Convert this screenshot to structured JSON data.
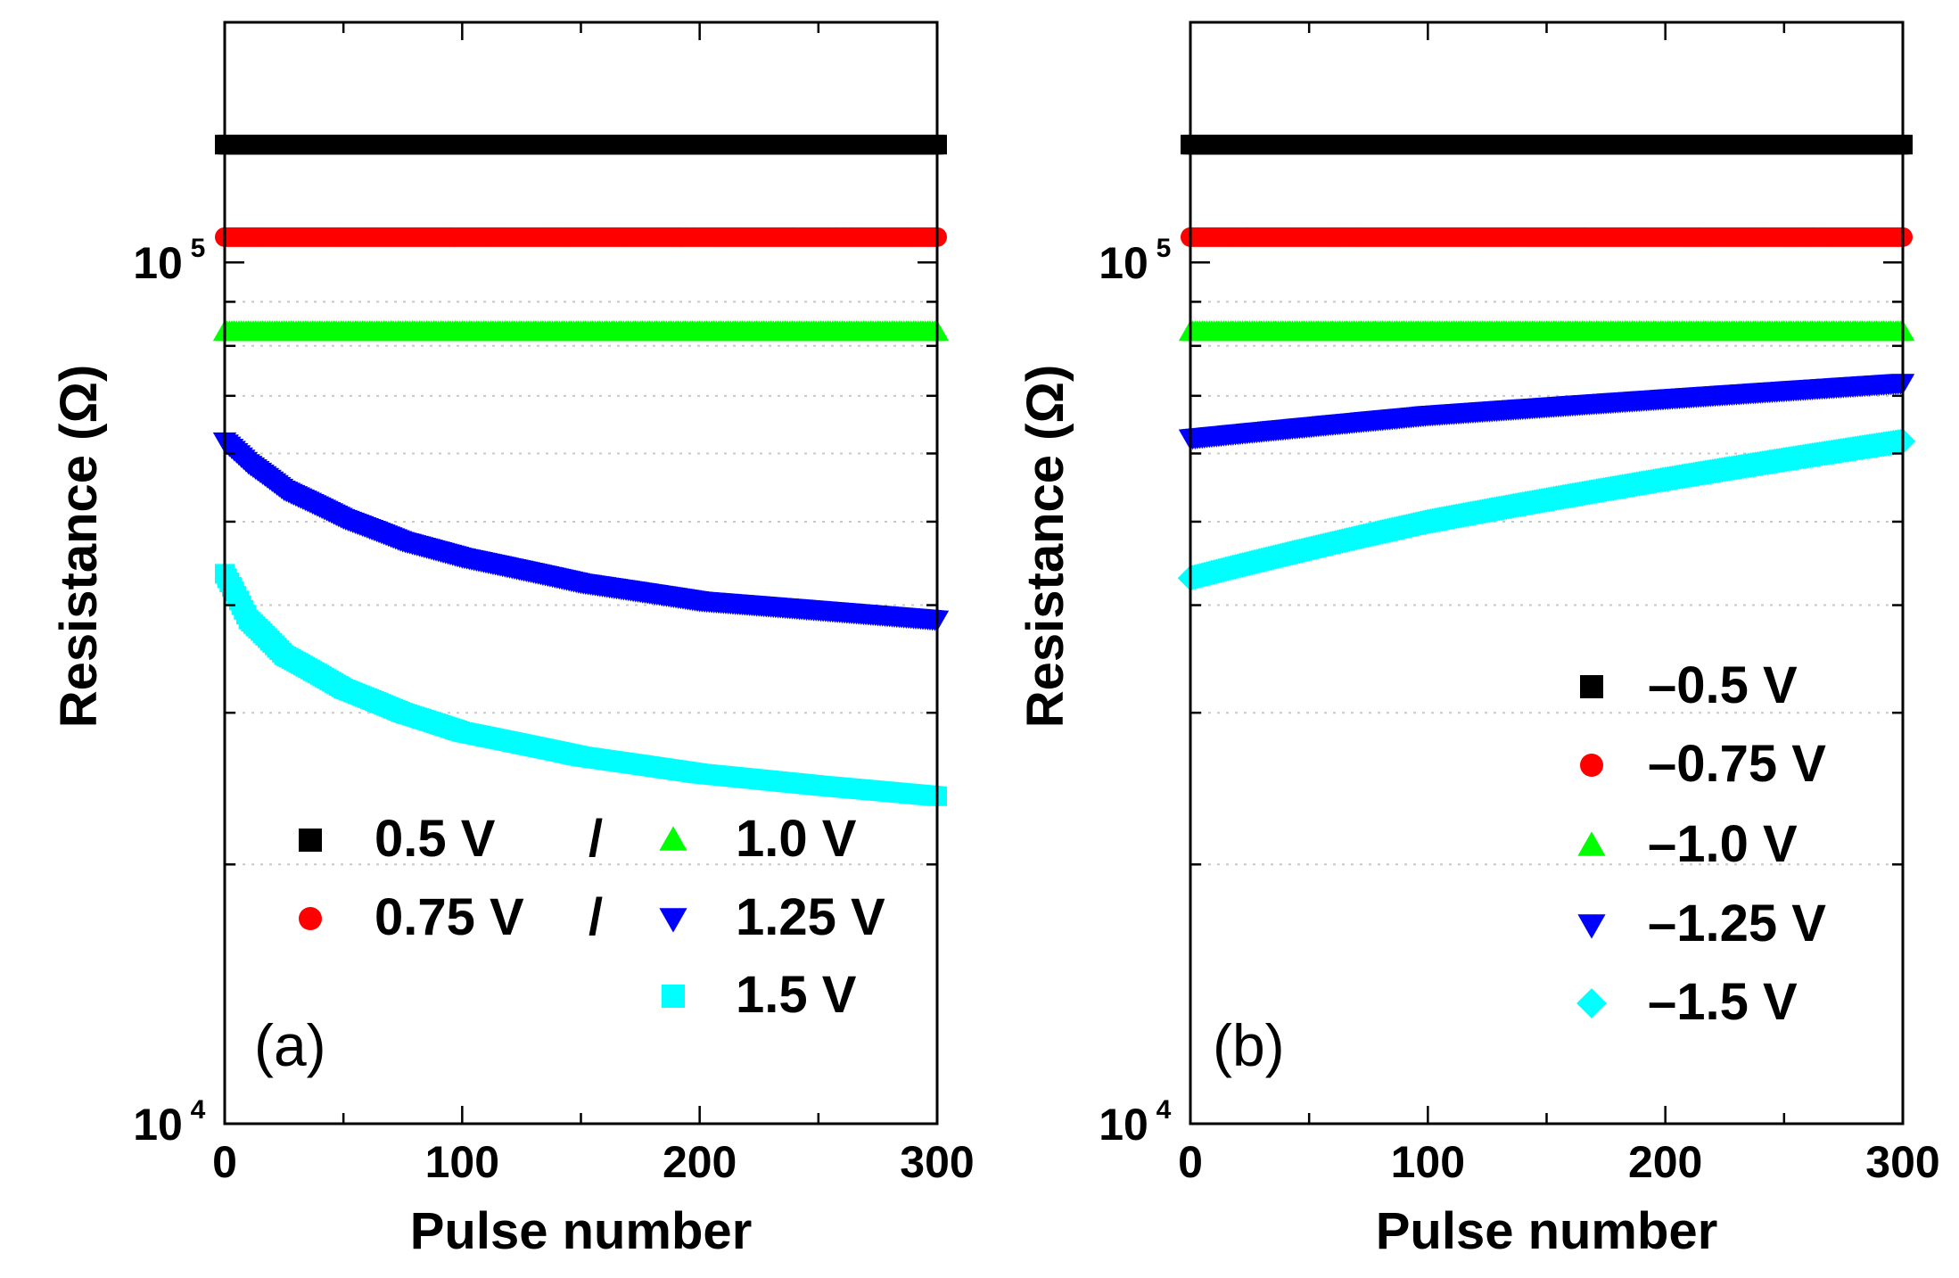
{
  "chart_data": [
    {
      "type": "scatter",
      "panel_label": "(a)",
      "xlabel": "Pulse number",
      "ylabel": "Resistance (Ω)",
      "xlim": [
        0,
        300
      ],
      "ylim": [
        10000,
        190000
      ],
      "yscale": "log",
      "x_ticks": [
        0,
        100,
        200,
        300
      ],
      "x_tick_labels": [
        "0",
        "100",
        "200",
        "300"
      ],
      "y_ticks": [
        {
          "value": 10000,
          "base": "10",
          "exp": "4"
        },
        {
          "value": 100000,
          "base": "10",
          "exp": "5"
        }
      ],
      "grid": "dotted horizontal at minor decades",
      "legend_position": "lower-right",
      "legend_separator": "/",
      "series": [
        {
          "name": "0.5 V",
          "color": "#000000",
          "marker": "square",
          "x": [
            0,
            50,
            100,
            150,
            200,
            250,
            300
          ],
          "values": [
            137000,
            137000,
            137000,
            137000,
            137000,
            137000,
            137000
          ]
        },
        {
          "name": "0.75 V",
          "color": "#ff0000",
          "marker": "circle",
          "x": [
            0,
            50,
            100,
            150,
            200,
            250,
            300
          ],
          "values": [
            107000,
            107000,
            107000,
            107000,
            107000,
            107000,
            107000
          ]
        },
        {
          "name": "1.0 V",
          "color": "#00ff00",
          "marker": "triangle-up",
          "x": [
            0,
            50,
            100,
            150,
            200,
            250,
            300
          ],
          "values": [
            83000,
            83000,
            83000,
            83000,
            83000,
            83000,
            83000
          ]
        },
        {
          "name": "1.25 V",
          "color": "#0000ff",
          "marker": "triangle-down",
          "x": [
            0,
            10,
            25,
            50,
            75,
            100,
            150,
            200,
            250,
            300
          ],
          "values": [
            62000,
            58500,
            54500,
            50500,
            47500,
            45500,
            42500,
            40500,
            39500,
            38500
          ]
        },
        {
          "name": "1.5 V",
          "color": "#00ffff",
          "marker": "square",
          "x": [
            0,
            10,
            25,
            50,
            75,
            100,
            150,
            200,
            250,
            300
          ],
          "values": [
            43500,
            38500,
            35000,
            32000,
            30000,
            28500,
            26700,
            25500,
            24700,
            24000
          ]
        }
      ]
    },
    {
      "type": "scatter",
      "panel_label": "(b)",
      "xlabel": "Pulse number",
      "ylabel": "Resistance (Ω)",
      "xlim": [
        0,
        300
      ],
      "ylim": [
        10000,
        190000
      ],
      "yscale": "log",
      "x_ticks": [
        0,
        100,
        200,
        300
      ],
      "x_tick_labels": [
        "0",
        "100",
        "200",
        "300"
      ],
      "y_ticks": [
        {
          "value": 10000,
          "base": "10",
          "exp": "4"
        },
        {
          "value": 100000,
          "base": "10",
          "exp": "5"
        }
      ],
      "grid": "dotted horizontal at minor decades",
      "legend_position": "lower-right",
      "series": [
        {
          "name": "–0.5 V",
          "color": "#000000",
          "marker": "square",
          "x": [
            0,
            50,
            100,
            150,
            200,
            250,
            300
          ],
          "values": [
            137000,
            137000,
            137000,
            137000,
            137000,
            137000,
            137000
          ]
        },
        {
          "name": "–0.75 V",
          "color": "#ff0000",
          "marker": "circle",
          "x": [
            0,
            50,
            100,
            150,
            200,
            250,
            300
          ],
          "values": [
            107000,
            107000,
            107000,
            107000,
            107000,
            107000,
            107000
          ]
        },
        {
          "name": "–1.0 V",
          "color": "#00ff00",
          "marker": "triangle-up",
          "x": [
            0,
            50,
            100,
            150,
            200,
            250,
            300
          ],
          "values": [
            83000,
            83000,
            83000,
            83000,
            83000,
            83000,
            83000
          ]
        },
        {
          "name": "–1.25 V",
          "color": "#0000ff",
          "marker": "triangle-down",
          "x": [
            0,
            50,
            100,
            150,
            200,
            250,
            300
          ],
          "values": [
            62500,
            64500,
            66500,
            68000,
            69500,
            71000,
            72500
          ]
        },
        {
          "name": "–1.5 V",
          "color": "#00ffff",
          "marker": "diamond",
          "x": [
            0,
            50,
            100,
            150,
            200,
            250,
            300
          ],
          "values": [
            43000,
            46500,
            50000,
            53000,
            56000,
            59000,
            62000
          ]
        }
      ]
    }
  ]
}
